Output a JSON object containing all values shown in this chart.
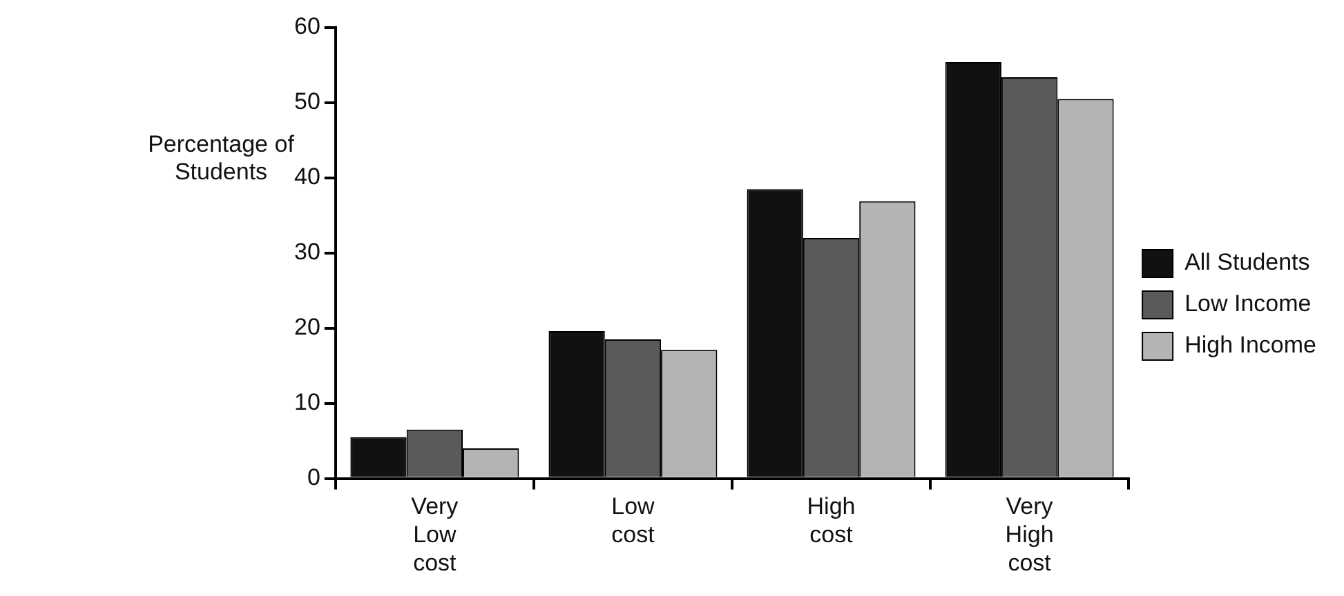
{
  "chart_data": {
    "type": "bar",
    "ylabel": "Percentage of Students",
    "categories": [
      "Very Low cost",
      "Low cost",
      "High cost",
      "Very High cost"
    ],
    "series": [
      {
        "name": "All Students",
        "color": "#111111",
        "values": [
          5.5,
          19.6,
          38.5,
          55.4
        ]
      },
      {
        "name": "Low Income",
        "color": "#5a5a5a",
        "values": [
          6.5,
          18.5,
          32,
          53.4
        ]
      },
      {
        "name": "High Income",
        "color": "#b4b4b4",
        "values": [
          4,
          17.1,
          36.9,
          50.5
        ]
      }
    ],
    "ylim": [
      0,
      60
    ],
    "yticks": [
      0,
      10,
      20,
      30,
      40,
      50,
      60
    ],
    "grid": false,
    "legend": "right"
  }
}
